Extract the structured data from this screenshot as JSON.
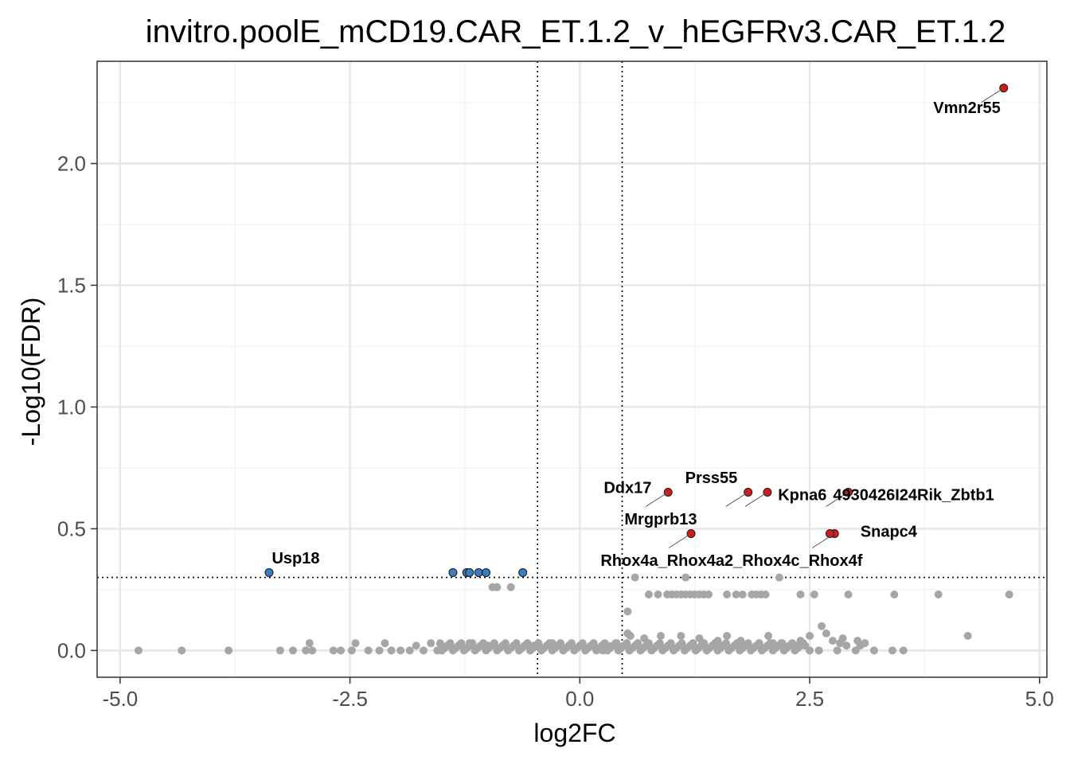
{
  "chart_data": {
    "type": "scatter",
    "title": "invitro.poolE_mCD19.CAR_ET.1.2_v_hEGFRv3.CAR_ET.1.2",
    "xlabel": "log2FC",
    "ylabel": "-Log10(FDR)",
    "xlim": [
      -5.25,
      5.08
    ],
    "ylim": [
      -0.11,
      2.42
    ],
    "x_ticks": [
      -5.0,
      -2.5,
      0.0,
      2.5,
      5.0
    ],
    "x_tick_labels": [
      "-5.0",
      "-2.5",
      "0.0",
      "2.5",
      "5.0"
    ],
    "y_ticks": [
      0.0,
      0.5,
      1.0,
      1.5,
      2.0
    ],
    "y_tick_labels": [
      "0.0",
      "0.5",
      "1.0",
      "1.5",
      "2.0"
    ],
    "grid": true,
    "thresholds": {
      "log2fc": [
        -0.46,
        0.46
      ],
      "neg_log10_fdr": 0.3
    },
    "colors": {
      "up": "#d7191c",
      "down": "#3a7dc0",
      "nonsig": "#a6a6a6",
      "outline": "#1a1a1a"
    },
    "significant_points": [
      {
        "label": "Vmn2r55",
        "x": 4.61,
        "y": 2.31,
        "group": "up",
        "lx": 4.21,
        "ly": 2.23
      },
      {
        "label": "Ddx17",
        "x": 0.96,
        "y": 0.65,
        "group": "up",
        "lx": 0.52,
        "ly": 0.67
      },
      {
        "label": "Prss55",
        "x": 1.83,
        "y": 0.65,
        "group": "up",
        "lx": 1.43,
        "ly": 0.71
      },
      {
        "label": "Kpna6",
        "x": 2.04,
        "y": 0.65,
        "group": "up",
        "lx": 2.42,
        "ly": 0.64
      },
      {
        "label": "4930426I24Rik_Zbtb1",
        "x": 2.92,
        "y": 0.65,
        "group": "up",
        "lx": 3.63,
        "ly": 0.64
      },
      {
        "label": "Mrgprb13",
        "x": 1.21,
        "y": 0.48,
        "group": "up",
        "lx": 0.88,
        "ly": 0.54
      },
      {
        "label": "Snapc4",
        "x": 2.77,
        "y": 0.48,
        "group": "up",
        "lx": 3.36,
        "ly": 0.49
      },
      {
        "label": "Rhox4a_Rhox4a2_Rhox4c_Rhox4f",
        "x": 2.72,
        "y": 0.48,
        "group": "up",
        "lx": 1.65,
        "ly": 0.37
      },
      {
        "label": "Usp18",
        "x": -3.38,
        "y": 0.32,
        "group": "down",
        "lx": -3.09,
        "ly": 0.38
      },
      {
        "label": "",
        "x": -1.38,
        "y": 0.32,
        "group": "down"
      },
      {
        "label": "",
        "x": -1.23,
        "y": 0.32,
        "group": "down"
      },
      {
        "label": "",
        "x": -1.2,
        "y": 0.32,
        "group": "down"
      },
      {
        "label": "",
        "x": -1.1,
        "y": 0.32,
        "group": "down"
      },
      {
        "label": "",
        "x": -1.02,
        "y": 0.32,
        "group": "down"
      },
      {
        "label": "",
        "x": -0.62,
        "y": 0.32,
        "group": "down"
      }
    ],
    "nonsig_points": [
      [
        -4.8,
        0.0
      ],
      [
        -4.33,
        0.0
      ],
      [
        -3.82,
        0.0
      ],
      [
        -3.26,
        0.0
      ],
      [
        -3.12,
        0.0
      ],
      [
        -2.98,
        0.0
      ],
      [
        -2.94,
        0.03
      ],
      [
        -2.91,
        0.0
      ],
      [
        -2.68,
        0.0
      ],
      [
        -2.6,
        0.0
      ],
      [
        -2.48,
        0.0
      ],
      [
        -2.44,
        0.03
      ],
      [
        -2.3,
        0.0
      ],
      [
        -2.18,
        0.0
      ],
      [
        -2.12,
        0.03
      ],
      [
        -2.05,
        0.0
      ],
      [
        -1.95,
        0.0
      ],
      [
        -1.85,
        0.0
      ],
      [
        -1.78,
        0.02
      ],
      [
        -1.7,
        0.0
      ],
      [
        -1.62,
        0.03
      ],
      [
        -1.55,
        0.0
      ],
      [
        -1.52,
        0.03
      ],
      [
        -0.95,
        0.26
      ],
      [
        -0.9,
        0.26
      ],
      [
        -0.75,
        0.26
      ],
      [
        0.6,
        0.3
      ],
      [
        1.15,
        0.3
      ],
      [
        2.17,
        0.3
      ],
      [
        0.52,
        0.16
      ],
      [
        0.52,
        0.07
      ],
      [
        0.75,
        0.23
      ],
      [
        0.85,
        0.23
      ],
      [
        0.95,
        0.23
      ],
      [
        1.0,
        0.23
      ],
      [
        1.05,
        0.23
      ],
      [
        1.1,
        0.23
      ],
      [
        1.15,
        0.23
      ],
      [
        1.2,
        0.23
      ],
      [
        1.25,
        0.23
      ],
      [
        1.3,
        0.23
      ],
      [
        1.35,
        0.23
      ],
      [
        1.4,
        0.23
      ],
      [
        1.6,
        0.23
      ],
      [
        1.7,
        0.23
      ],
      [
        1.77,
        0.23
      ],
      [
        1.87,
        0.23
      ],
      [
        1.92,
        0.23
      ],
      [
        1.97,
        0.23
      ],
      [
        2.02,
        0.23
      ],
      [
        2.4,
        0.23
      ],
      [
        2.55,
        0.23
      ],
      [
        2.92,
        0.23
      ],
      [
        3.42,
        0.23
      ],
      [
        3.9,
        0.23
      ],
      [
        4.67,
        0.23
      ],
      [
        0.55,
        0.06
      ],
      [
        0.7,
        0.05
      ],
      [
        0.88,
        0.06
      ],
      [
        1.1,
        0.06
      ],
      [
        1.3,
        0.05
      ],
      [
        1.5,
        0.04
      ],
      [
        1.6,
        0.06
      ],
      [
        1.75,
        0.04
      ],
      [
        1.95,
        0.03
      ],
      [
        2.05,
        0.06
      ],
      [
        2.1,
        0.03
      ],
      [
        2.2,
        0.03
      ],
      [
        2.35,
        0.02
      ],
      [
        2.4,
        0.04
      ],
      [
        2.5,
        0.06
      ],
      [
        2.63,
        0.1
      ],
      [
        2.68,
        0.07
      ],
      [
        2.75,
        0.04
      ],
      [
        2.83,
        0.03
      ],
      [
        2.86,
        0.05
      ],
      [
        2.9,
        0.02
      ],
      [
        3.05,
        0.02
      ],
      [
        3.1,
        0.03
      ],
      [
        3.02,
        0.04
      ],
      [
        4.22,
        0.06
      ],
      [
        0.3,
        0.02
      ],
      [
        0.25,
        0.0
      ],
      [
        0.4,
        0.03
      ],
      [
        0.15,
        0.02
      ],
      [
        -0.3,
        0.03
      ],
      [
        -0.5,
        0.02
      ],
      [
        -1.0,
        0.02
      ],
      [
        -1.2,
        0.03
      ],
      [
        2.5,
        0.0
      ],
      [
        2.6,
        0.0
      ],
      [
        2.8,
        0.0
      ],
      [
        3.0,
        0.0
      ],
      [
        3.2,
        0.0
      ],
      [
        3.4,
        0.0
      ],
      [
        3.52,
        0.0
      ],
      [
        2.45,
        0.02
      ]
    ],
    "nonsig_dense_band": {
      "x_from": -1.5,
      "x_to": 2.45,
      "y_values": [
        0.0,
        0.01,
        0.02,
        0.03
      ]
    }
  }
}
